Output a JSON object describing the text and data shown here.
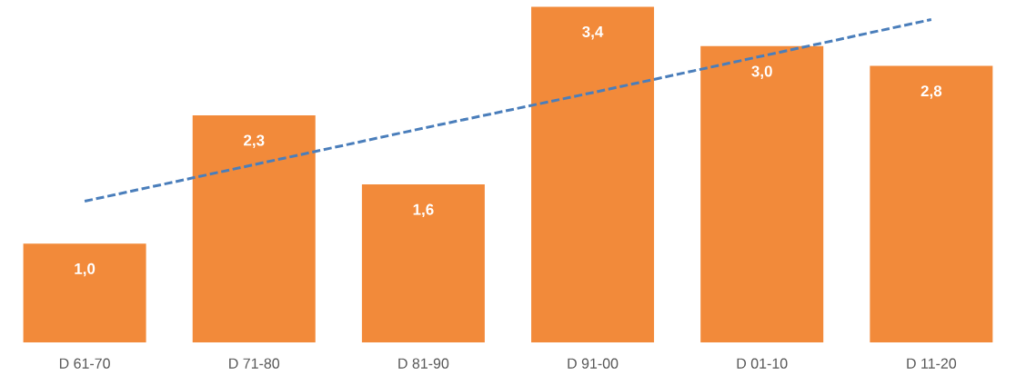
{
  "chart_data": {
    "type": "bar",
    "categories": [
      "D 61-70",
      "D 71-80",
      "D 81-90",
      "D 91-00",
      "D 01-10",
      "D 11-20"
    ],
    "series": [
      {
        "color": "#f28a3a",
        "values": [
          1.0,
          2.3,
          1.6,
          3.4,
          3.0,
          2.8
        ],
        "value_labels": [
          "1,0",
          "2,3",
          "1,6",
          "3,4",
          "3,0",
          "2,8"
        ]
      },
      {
        "type": "line",
        "color": "#4a7ebb",
        "line_style": "dashed",
        "marker": "none",
        "values": [
          1.43,
          1.8,
          2.17,
          2.53,
          2.9,
          3.27
        ]
      }
    ]
  }
}
